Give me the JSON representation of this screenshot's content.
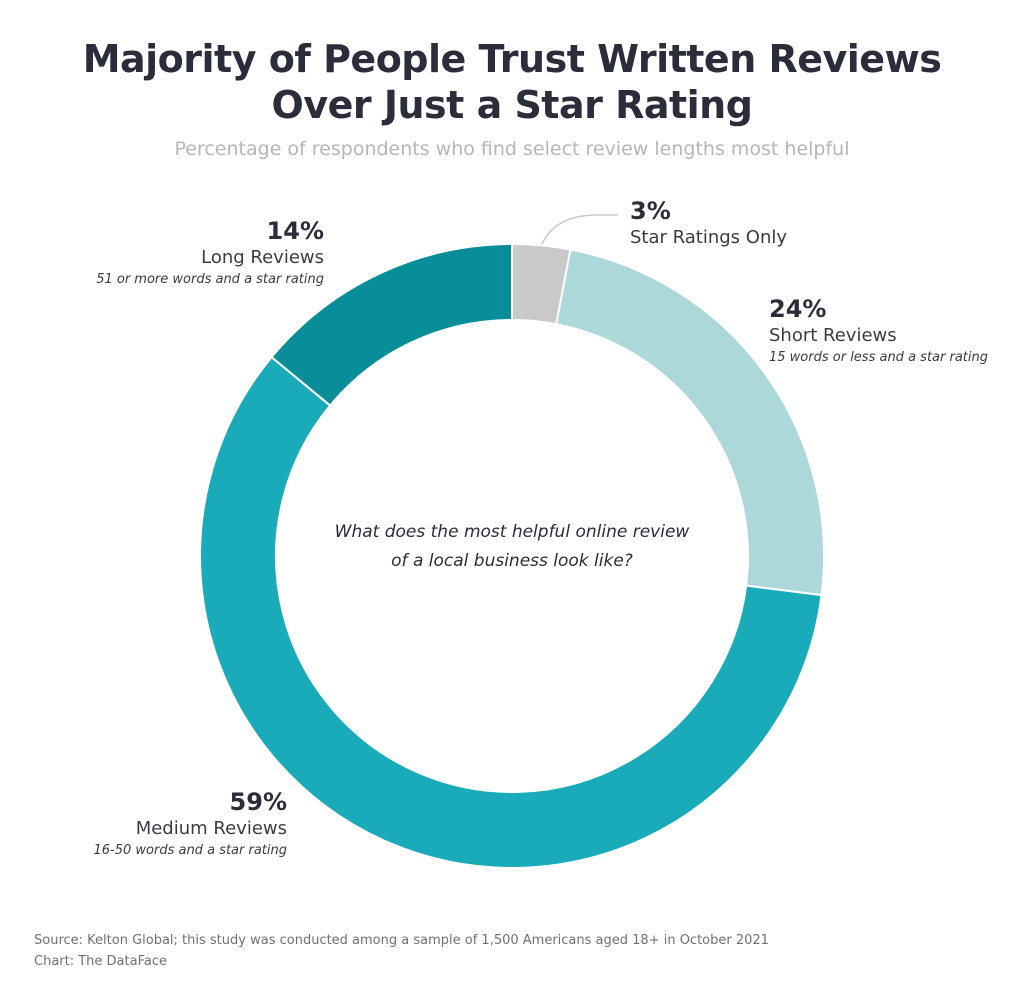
{
  "title_line1": "Majority of People Trust Written Reviews",
  "title_line2": "Over Just a Star Rating",
  "subtitle": "Percentage of respondents who find select review lengths most helpful",
  "center_question_line1": "What does the most helpful online review",
  "center_question_line2": "of a local business look like?",
  "source_line1": "Source: Kelton Global; this study was conducted among a sample of 1,500 Americans aged 18+ in October 2021",
  "source_line2": "Chart: The DataFace",
  "chart_data": {
    "type": "pie",
    "donut": true,
    "title": "Majority of People Trust Written Reviews Over Just a Star Rating",
    "subtitle": "Percentage of respondents who find select review lengths most helpful",
    "slices": [
      {
        "name": "Star Ratings Only",
        "value": 3,
        "label": "3%",
        "desc": "",
        "color": "#c9c9c9"
      },
      {
        "name": "Short Reviews",
        "value": 24,
        "label": "24%",
        "desc": "15 words or less and a star rating",
        "color": "#acd8d9"
      },
      {
        "name": "Medium Reviews",
        "value": 59,
        "label": "59%",
        "desc": "16-50 words and a star rating",
        "color": "#1aabbb"
      },
      {
        "name": "Long Reviews",
        "value": 14,
        "label": "14%",
        "desc": "51 or more words and a star rating",
        "color": "#078e98"
      }
    ]
  }
}
